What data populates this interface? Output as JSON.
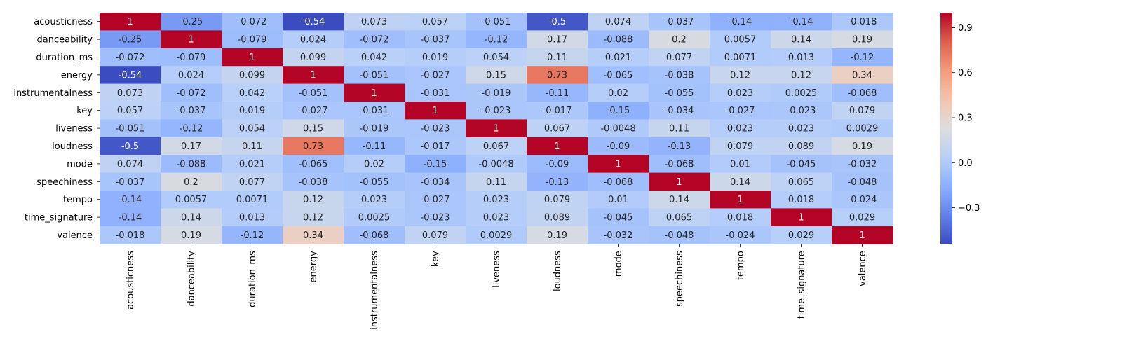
{
  "chart_data": {
    "type": "heatmap",
    "title": "",
    "xlabel": "",
    "ylabel": "",
    "rows": [
      "acousticness",
      "danceability",
      "duration_ms",
      "energy",
      "instrumentalness",
      "key",
      "liveness",
      "loudness",
      "mode",
      "speechiness",
      "tempo",
      "time_signature",
      "valence"
    ],
    "columns": [
      "acousticness",
      "danceability",
      "duration_ms",
      "energy",
      "instrumentalness",
      "key",
      "liveness",
      "loudness",
      "mode",
      "speechiness",
      "tempo",
      "time_signature",
      "valence"
    ],
    "values": [
      [
        1,
        -0.25,
        -0.072,
        -0.54,
        0.073,
        0.057,
        -0.051,
        -0.5,
        0.074,
        -0.037,
        -0.14,
        -0.14,
        -0.018
      ],
      [
        -0.25,
        1,
        -0.079,
        0.024,
        -0.072,
        -0.037,
        -0.12,
        0.17,
        -0.088,
        0.2,
        0.0057,
        0.14,
        0.19
      ],
      [
        -0.072,
        -0.079,
        1,
        0.099,
        0.042,
        0.019,
        0.054,
        0.11,
        0.021,
        0.077,
        0.0071,
        0.013,
        -0.12
      ],
      [
        -0.54,
        0.024,
        0.099,
        1,
        -0.051,
        -0.027,
        0.15,
        0.73,
        -0.065,
        -0.038,
        0.12,
        0.12,
        0.34
      ],
      [
        0.073,
        -0.072,
        0.042,
        -0.051,
        1,
        -0.031,
        -0.019,
        -0.11,
        0.02,
        -0.055,
        0.023,
        0.0025,
        -0.068
      ],
      [
        0.057,
        -0.037,
        0.019,
        -0.027,
        -0.031,
        1,
        -0.023,
        -0.017,
        -0.15,
        -0.034,
        -0.027,
        -0.023,
        0.079
      ],
      [
        -0.051,
        -0.12,
        0.054,
        0.15,
        -0.019,
        -0.023,
        1,
        0.067,
        -0.0048,
        0.11,
        0.023,
        0.023,
        0.0029
      ],
      [
        -0.5,
        0.17,
        0.11,
        0.73,
        -0.11,
        -0.017,
        0.067,
        1,
        -0.09,
        -0.13,
        0.079,
        0.089,
        0.19
      ],
      [
        0.074,
        -0.088,
        0.021,
        -0.065,
        0.02,
        -0.15,
        -0.0048,
        -0.09,
        1,
        -0.068,
        0.01,
        -0.045,
        -0.032
      ],
      [
        -0.037,
        0.2,
        0.077,
        -0.038,
        -0.055,
        -0.034,
        0.11,
        -0.13,
        -0.068,
        1,
        0.14,
        0.065,
        -0.048
      ],
      [
        -0.14,
        0.0057,
        0.0071,
        0.12,
        0.023,
        -0.027,
        0.023,
        0.079,
        0.01,
        0.14,
        1,
        0.018,
        -0.024
      ],
      [
        -0.14,
        0.14,
        0.013,
        0.12,
        0.0025,
        -0.023,
        0.023,
        0.089,
        -0.045,
        0.065,
        0.018,
        1,
        0.029
      ],
      [
        -0.018,
        0.19,
        -0.12,
        0.34,
        -0.068,
        0.079,
        0.0029,
        0.19,
        -0.032,
        -0.048,
        -0.024,
        0.029,
        1
      ]
    ],
    "colorbar": {
      "colormap": "coolwarm",
      "range": [
        -0.54,
        1
      ],
      "ticks": [
        -0.3,
        0.0,
        0.3,
        0.6,
        0.9
      ],
      "tick_labels": [
        "−0.3",
        "0.0",
        "0.3",
        "0.6",
        "0.9"
      ]
    },
    "annotations": "cell values shown"
  }
}
